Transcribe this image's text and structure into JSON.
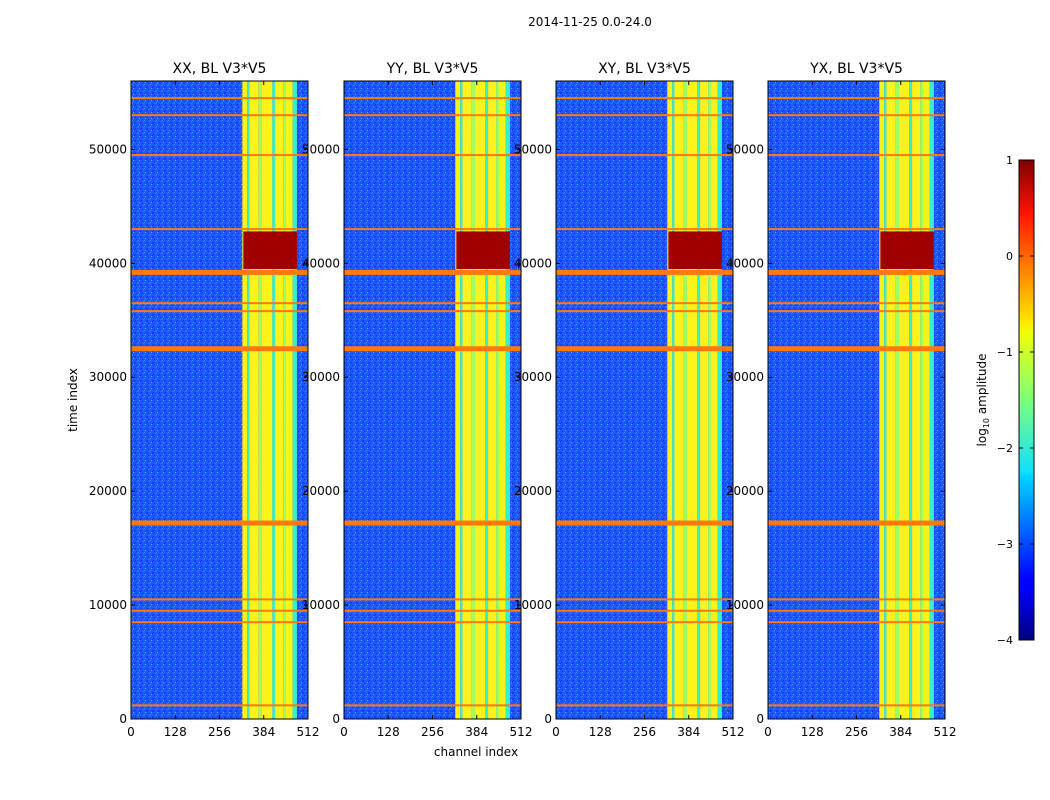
{
  "figure_title": "2014-11-25 0.0-24.0",
  "colors": {
    "background_low": "#1a4cff",
    "band_high": "#fff21a",
    "band_mid": "#37f0c8",
    "hot": "#a10000",
    "flag_line": "#ff7a0a"
  },
  "chart_data": [
    {
      "type": "heatmap",
      "title": "XX, BL V3*V5",
      "xlabel": "channel index",
      "ylabel": "time index",
      "xlim": [
        0,
        512
      ],
      "ylim": [
        0,
        56000
      ],
      "xticks": [
        0,
        128,
        256,
        384,
        512
      ],
      "yticks": [
        0,
        10000,
        20000,
        30000,
        40000,
        50000
      ],
      "rfi_channel_band": [
        322,
        480
      ],
      "hot_block": {
        "channels": [
          325,
          480
        ],
        "time": [
          39500,
          42800
        ]
      }
    },
    {
      "type": "heatmap",
      "title": "YY, BL V3*V5",
      "xlabel": "channel index",
      "ylabel": "time index",
      "xlim": [
        0,
        512
      ],
      "ylim": [
        0,
        56000
      ],
      "xticks": [
        0,
        128,
        256,
        384,
        512
      ],
      "yticks": [
        0,
        10000,
        20000,
        30000,
        40000,
        50000
      ],
      "rfi_channel_band": [
        322,
        480
      ],
      "hot_block": {
        "channels": [
          325,
          480
        ],
        "time": [
          39500,
          42800
        ]
      }
    },
    {
      "type": "heatmap",
      "title": "XY, BL V3*V5",
      "xlabel": "channel index",
      "ylabel": "time index",
      "xlim": [
        0,
        512
      ],
      "ylim": [
        0,
        56000
      ],
      "xticks": [
        0,
        128,
        256,
        384,
        512
      ],
      "yticks": [
        0,
        10000,
        20000,
        30000,
        40000,
        50000
      ],
      "rfi_channel_band": [
        322,
        480
      ],
      "hot_block": {
        "channels": [
          325,
          480
        ],
        "time": [
          39500,
          42800
        ]
      }
    },
    {
      "type": "heatmap",
      "title": "YX, BL V3*V5",
      "xlabel": "channel index",
      "ylabel": "time index",
      "xlim": [
        0,
        512
      ],
      "ylim": [
        0,
        56000
      ],
      "xticks": [
        0,
        128,
        256,
        384,
        512
      ],
      "yticks": [
        0,
        10000,
        20000,
        30000,
        40000,
        50000
      ],
      "rfi_channel_band": [
        322,
        480
      ],
      "hot_block": {
        "channels": [
          325,
          480
        ],
        "time": [
          39500,
          42800
        ]
      }
    }
  ],
  "flagged_time_rows": [
    1200,
    8500,
    9500,
    10500,
    17200,
    32500,
    35800,
    36500,
    39200,
    43000,
    49500,
    53000,
    54500
  ],
  "colorbar": {
    "label": "log10 amplitude",
    "label_main": "log",
    "label_sub": "10",
    "label_rest": " amplitude",
    "range": [
      -4,
      1
    ],
    "ticks": [
      "1",
      "0",
      "−1",
      "−2",
      "−3",
      "−4"
    ],
    "tick_values": [
      1,
      0,
      -1,
      -2,
      -3,
      -4
    ]
  }
}
